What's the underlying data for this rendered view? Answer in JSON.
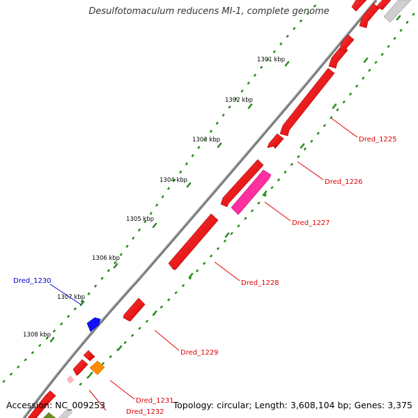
{
  "title": "Desulfotomaculum reducens MI-1, complete genome",
  "footer": {
    "accession": "Accession: NC_009253",
    "topology": "Topology: circular; Length: 3,608,104 bp; Genes: 3,375"
  },
  "ticks": [
    "1301 kbp",
    "1302 kbp",
    "1303 kbp",
    "1304 kbp",
    "1305 kbp",
    "1306 kbp",
    "1307 kbp",
    "1308 kbp"
  ],
  "gene_labels": [
    {
      "name": "Dred_1225",
      "color": "#e00000"
    },
    {
      "name": "Dred_1226",
      "color": "#e00000"
    },
    {
      "name": "Dred_1227",
      "color": "#e00000"
    },
    {
      "name": "Dred_1228",
      "color": "#e00000"
    },
    {
      "name": "Dred_1229",
      "color": "#e00000"
    },
    {
      "name": "Dred_1230",
      "color": "#0000cc"
    },
    {
      "name": "Dred_1231",
      "color": "#e00000"
    },
    {
      "name": "Dred_1232",
      "color": "#e00000"
    }
  ],
  "colors": {
    "backbone": "#8c8c8c",
    "tick": "#2e8b22",
    "gene_red": "#ff1010",
    "gene_magenta": "#ff2fa0",
    "gene_blue": "#1010ff",
    "gene_orange": "#ff8c00",
    "gene_gray": "#c8c8c8",
    "gene_olive": "#6b8e23",
    "gene_pink": "#ffb6c1"
  }
}
